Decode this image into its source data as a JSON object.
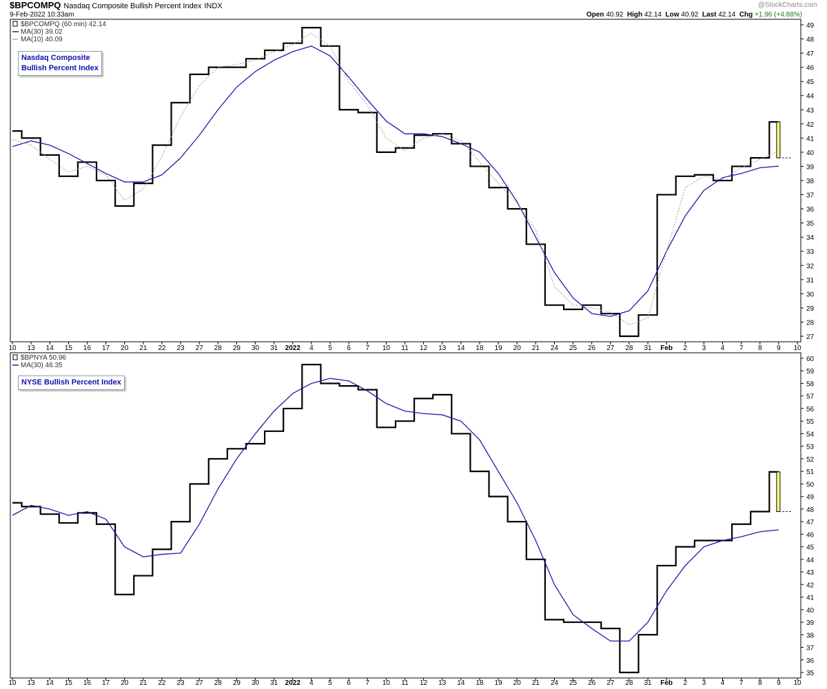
{
  "header": {
    "symbol": "$BPCOMPQ",
    "name": "Nasdaq Composite Bullish Percent Index",
    "exchange": "INDX",
    "date": "9-Feb-2022 10:33am",
    "open_label": "Open",
    "open": "40.92",
    "high_label": "High",
    "high": "42.14",
    "low_label": "Low",
    "low": "40.92",
    "last_label": "Last",
    "last": "42.14",
    "chg_label": "Chg",
    "chg": "+1.96 (+4.88%)",
    "watermark": "@StockCharts.com"
  },
  "colors": {
    "ma30": "#1c1ca8",
    "ma10": "#999999",
    "last_candle": "#ffff80"
  },
  "x_labels": [
    "10",
    "13",
    "14",
    "15",
    "16",
    "17",
    "20",
    "21",
    "22",
    "23",
    "27",
    "28",
    "29",
    "30",
    "31",
    "2022",
    "4",
    "5",
    "6",
    "7",
    "10",
    "11",
    "12",
    "13",
    "14",
    "18",
    "19",
    "20",
    "21",
    "24",
    "25",
    "26",
    "27",
    "28",
    "31",
    "Feb",
    "2",
    "3",
    "4",
    "7",
    "8",
    "9",
    "10"
  ],
  "panel1": {
    "legend": [
      "$BPCOMPQ (60 min) 42.14",
      "MA(30) 39.02",
      "MA(10) 40.09"
    ],
    "label_lines": [
      "Nasdaq Composite",
      "Bullish Percent Index"
    ]
  },
  "panel2": {
    "legend": [
      "$BPNYA 50.96",
      "MA(30) 46.35"
    ],
    "label_lines": [
      "NYSE Bullish Percent Index"
    ]
  },
  "chart_data": [
    {
      "type": "line",
      "title": "$BPCOMPQ Nasdaq Composite Bullish Percent Index",
      "x": [
        "10",
        "13",
        "14",
        "15",
        "16",
        "17",
        "20",
        "21",
        "22",
        "23",
        "27",
        "28",
        "29",
        "30",
        "31",
        "2022",
        "4",
        "5",
        "6",
        "7",
        "10",
        "11",
        "12",
        "13",
        "14",
        "18",
        "19",
        "20",
        "21",
        "24",
        "25",
        "26",
        "27",
        "28",
        "31",
        "Feb",
        "2",
        "3",
        "4",
        "7",
        "8",
        "9"
      ],
      "series": [
        {
          "name": "$BPCOMPQ (60 min)",
          "values": [
            41.5,
            41.0,
            39.8,
            38.3,
            39.3,
            38.0,
            36.2,
            37.8,
            40.5,
            43.5,
            45.5,
            46.0,
            46.0,
            46.6,
            47.2,
            47.7,
            48.8,
            47.5,
            43.0,
            42.8,
            40.0,
            40.3,
            41.2,
            41.3,
            40.6,
            39.0,
            37.5,
            36.0,
            33.5,
            29.2,
            28.9,
            29.2,
            28.6,
            27.0,
            28.5,
            37.0,
            38.3,
            38.4,
            38.0,
            39.0,
            39.6,
            42.14
          ]
        },
        {
          "name": "MA(30)",
          "values": [
            40.4,
            40.8,
            40.5,
            39.9,
            39.2,
            38.5,
            37.9,
            37.9,
            38.4,
            39.6,
            41.2,
            43.0,
            44.6,
            45.7,
            46.5,
            47.1,
            47.5,
            46.8,
            45.3,
            43.7,
            42.2,
            41.3,
            41.3,
            41.1,
            40.6,
            40.0,
            38.5,
            36.5,
            34.0,
            31.5,
            29.7,
            28.6,
            28.4,
            28.8,
            30.2,
            33.0,
            35.5,
            37.3,
            38.2,
            38.5,
            38.9,
            39.02
          ]
        },
        {
          "name": "MA(10)",
          "values": [
            40.9,
            40.5,
            39.5,
            38.6,
            39.0,
            38.4,
            36.6,
            37.4,
            39.7,
            42.5,
            44.7,
            46.0,
            46.2,
            46.5,
            47.1,
            47.6,
            48.4,
            47.5,
            45.0,
            43.3,
            41.0,
            40.1,
            41.0,
            41.3,
            40.8,
            39.3,
            37.8,
            36.4,
            34.5,
            30.5,
            29.2,
            29.0,
            28.7,
            27.8,
            28.3,
            33.0,
            37.5,
            38.3,
            38.1,
            38.9,
            39.5,
            40.09
          ]
        }
      ],
      "ylim": [
        27,
        49
      ],
      "y_ticks": [
        27,
        28,
        29,
        30,
        31,
        32,
        33,
        34,
        35,
        36,
        37,
        38,
        39,
        40,
        41,
        42,
        43,
        44,
        45,
        46,
        47,
        48,
        49
      ]
    },
    {
      "type": "line",
      "title": "$BPNYA NYSE Bullish Percent Index",
      "x": [
        "10",
        "13",
        "14",
        "15",
        "16",
        "17",
        "20",
        "21",
        "22",
        "23",
        "27",
        "28",
        "29",
        "30",
        "31",
        "2022",
        "4",
        "5",
        "6",
        "7",
        "10",
        "11",
        "12",
        "13",
        "14",
        "18",
        "19",
        "20",
        "21",
        "24",
        "25",
        "26",
        "27",
        "28",
        "31",
        "Feb",
        "2",
        "3",
        "4",
        "7",
        "8",
        "9"
      ],
      "series": [
        {
          "name": "$BPNYA",
          "values": [
            48.5,
            48.2,
            47.6,
            46.9,
            47.7,
            46.8,
            41.2,
            42.7,
            44.8,
            47.0,
            50.0,
            52.0,
            52.8,
            53.2,
            54.2,
            56.0,
            59.5,
            58.0,
            57.8,
            57.5,
            54.5,
            55.0,
            56.8,
            57.1,
            54.0,
            51.0,
            49.0,
            47.0,
            44.0,
            39.2,
            39.0,
            39.0,
            38.5,
            35.0,
            38.0,
            43.5,
            45.0,
            45.5,
            45.5,
            46.8,
            47.8,
            50.96
          ]
        },
        {
          "name": "MA(30)",
          "values": [
            47.5,
            48.3,
            48.0,
            47.5,
            47.8,
            47.2,
            45.0,
            44.2,
            44.4,
            44.5,
            46.8,
            49.6,
            52.0,
            54.0,
            55.8,
            57.2,
            58.0,
            58.4,
            58.2,
            57.4,
            56.4,
            55.8,
            55.6,
            55.5,
            55.0,
            53.5,
            51.0,
            48.5,
            45.5,
            42.0,
            39.6,
            38.5,
            37.5,
            37.5,
            39.0,
            41.5,
            43.5,
            45.0,
            45.5,
            45.8,
            46.2,
            46.35
          ]
        }
      ],
      "ylim": [
        35,
        60
      ],
      "y_ticks": [
        35,
        36,
        37,
        38,
        39,
        40,
        41,
        42,
        43,
        44,
        45,
        46,
        47,
        48,
        49,
        50,
        51,
        52,
        53,
        54,
        55,
        56,
        57,
        58,
        59,
        60
      ]
    }
  ]
}
